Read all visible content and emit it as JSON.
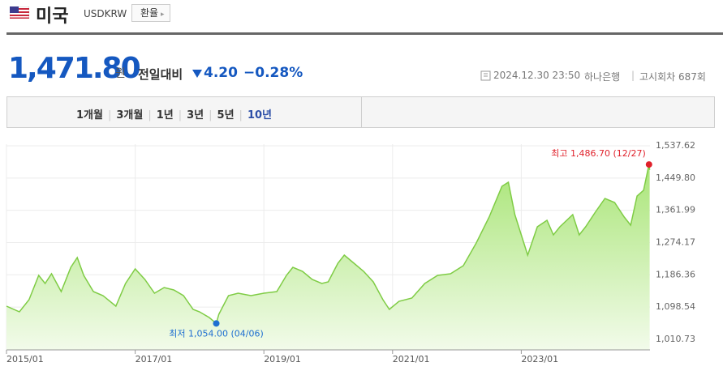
{
  "header": {
    "country": "미국",
    "code": "USDKRW",
    "button": "환율"
  },
  "quote": {
    "price": "1,471.80",
    "unit": "원",
    "change_label": "전일대비",
    "change": "4.20",
    "change_pct": "−0.28%",
    "datetime": "2024.12.30 23:50",
    "bank": "하나은행",
    "round": "고시회차 687회"
  },
  "tabs": [
    "1개월",
    "3개월",
    "1년",
    "3년",
    "5년",
    "10년"
  ],
  "chart_data": {
    "type": "line",
    "x": [
      2015.0,
      2015.2,
      2015.35,
      2015.5,
      2015.6,
      2015.7,
      2015.85,
      2016.0,
      2016.1,
      2016.2,
      2016.35,
      2016.5,
      2016.7,
      2016.85,
      2017.0,
      2017.15,
      2017.3,
      2017.45,
      2017.6,
      2017.75,
      2017.9,
      2018.0,
      2018.15,
      2018.26,
      2018.3,
      2018.45,
      2018.6,
      2018.8,
      2019.0,
      2019.2,
      2019.35,
      2019.45,
      2019.6,
      2019.75,
      2019.9,
      2020.0,
      2020.15,
      2020.25,
      2020.4,
      2020.55,
      2020.7,
      2020.85,
      2020.95,
      2021.1,
      2021.3,
      2021.5,
      2021.7,
      2021.9,
      2022.1,
      2022.3,
      2022.5,
      2022.7,
      2022.8,
      2022.9,
      2023.0,
      2023.1,
      2023.25,
      2023.4,
      2023.5,
      2023.6,
      2023.8,
      2023.9,
      2024.0,
      2024.15,
      2024.3,
      2024.45,
      2024.6,
      2024.7,
      2024.8,
      2024.9,
      2024.985,
      2024.995
    ],
    "series": [
      {
        "name": "USDKRW",
        "color": "#7fcc45",
        "values": [
          1101.1,
          1085.6,
          1118.7,
          1184.8,
          1162.8,
          1189.2,
          1140.7,
          1206.9,
          1233.3,
          1184.8,
          1140.7,
          1129.7,
          1101.1,
          1162.8,
          1202.5,
          1173.8,
          1136.3,
          1151.8,
          1145.1,
          1129.7,
          1092.2,
          1085.6,
          1070.2,
          1054.0,
          1079.0,
          1129.7,
          1136.3,
          1129.7,
          1136.3,
          1140.7,
          1184.8,
          1206.9,
          1195.9,
          1173.8,
          1162.8,
          1167.2,
          1217.9,
          1240.0,
          1217.9,
          1195.9,
          1167.2,
          1118.7,
          1092.2,
          1114.3,
          1123.1,
          1162.8,
          1184.8,
          1189.2,
          1211.3,
          1273.0,
          1343.6,
          1427.4,
          1438.4,
          1350.2,
          1295.1,
          1240.0,
          1317.1,
          1334.8,
          1295.1,
          1317.1,
          1350.2,
          1295.1,
          1317.1,
          1356.8,
          1394.3,
          1383.3,
          1343.6,
          1321.5,
          1400.9,
          1416.3,
          1486.7,
          1471.8
        ]
      }
    ],
    "xlim": [
      2015.0,
      2025.0
    ],
    "xticks": [
      {
        "value": 2015,
        "label": "2015/01"
      },
      {
        "value": 2017,
        "label": "2017/01"
      },
      {
        "value": 2019,
        "label": "2019/01"
      },
      {
        "value": 2021,
        "label": "2021/01"
      },
      {
        "value": 2023,
        "label": "2023/01"
      }
    ],
    "ylim": [
      982,
      1542
    ],
    "yticks": [
      {
        "value": 1010.73,
        "label": "1,010.73"
      },
      {
        "value": 1098.54,
        "label": "1,098.54"
      },
      {
        "value": 1186.36,
        "label": "1,186.36"
      },
      {
        "value": 1274.17,
        "label": "1,274.17"
      },
      {
        "value": 1361.99,
        "label": "1,361.99"
      },
      {
        "value": 1449.8,
        "label": "1,449.80"
      },
      {
        "value": 1537.62,
        "label": "1,537.62"
      }
    ],
    "grid": true,
    "annotations": [
      {
        "text": "최고 1,486.70 (12/27)",
        "x": 2024.985,
        "y": 1486.7,
        "color": "#e0212b"
      },
      {
        "text": "최저 1,054.00 (04/06)",
        "x": 2018.26,
        "y": 1054.0,
        "color": "#1f6fd1"
      }
    ]
  }
}
